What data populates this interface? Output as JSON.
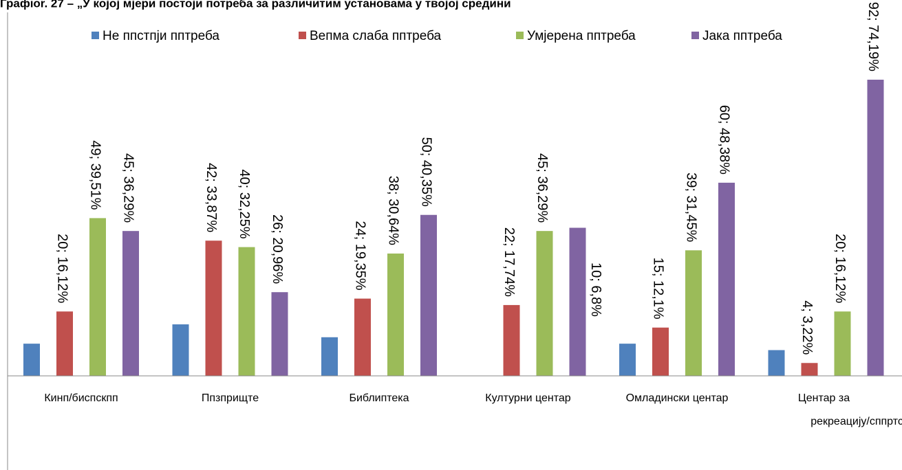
{
  "chart_data": {
    "type": "bar",
    "title": "Графіоr. 27 – „У којој мјери постоји потреба за различитим установама у твојој средини",
    "categories": [
      "Кинп/биспскпп",
      "Ппзприщте",
      "Библиптека",
      "Културни центар",
      "Омладински центар",
      "Центар за рекреацију/сппртски"
    ],
    "series": [
      {
        "name": "Не ппстпји пптреба",
        "color": "#4f81bd",
        "values": [
          10,
          16,
          12,
          null,
          10,
          8
        ],
        "value_labels": [
          null,
          null,
          null,
          null,
          null,
          null
        ]
      },
      {
        "name": "Вепма слаба пптреба",
        "color": "#c0504d",
        "values": [
          20,
          42,
          24,
          22,
          15,
          4
        ],
        "value_labels": [
          "20; 16,12%",
          "42; 33,87%",
          "24; 19,35%",
          "22; 17,74%",
          "15; 12,1%",
          "4; 3,22%"
        ]
      },
      {
        "name": "Умјерена пптреба",
        "color": "#9bbb59",
        "values": [
          49,
          40,
          38,
          45,
          39,
          20
        ],
        "value_labels": [
          "49; 39,51%",
          "40; 32,25%",
          "38; 30,64%",
          "45; 36,29%",
          "39; 31,45%",
          "20; 16,12%"
        ]
      },
      {
        "name": "Јака пптреба",
        "color": "#8064a2",
        "values": [
          45,
          26,
          50,
          46,
          60,
          92
        ],
        "value_labels": [
          "45; 36,29%",
          "26; 20,96%",
          "50; 40,35%",
          null,
          "60; 48,38%",
          "92; 74,19%"
        ]
      }
    ],
    "annotations": [
      "10; 6,8%"
    ],
    "ylim": [
      0,
      100
    ],
    "legend": "top"
  }
}
